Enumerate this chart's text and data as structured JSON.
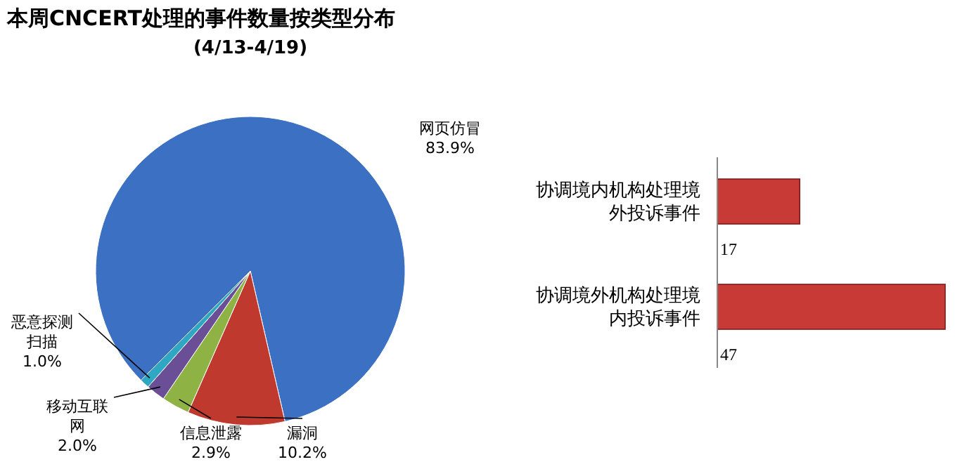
{
  "chart_data": [
    {
      "type": "pie",
      "title": "本周CNCERT处理的事件数量按类型分布",
      "subtitle": "(4/13-4/19)",
      "categories": [
        "网页仿冒",
        "漏洞",
        "信息泄露",
        "移动互联网",
        "恶意探测扫描"
      ],
      "values": [
        83.9,
        10.2,
        2.9,
        2.0,
        1.0
      ],
      "value_labels": [
        "83.9%",
        "10.2%",
        "2.9%",
        "2.0%",
        "1.0%"
      ],
      "colors": [
        "#3b70c2",
        "#c0392f",
        "#8fb244",
        "#6b4f96",
        "#2ea7c4"
      ]
    },
    {
      "type": "bar",
      "orientation": "horizontal",
      "categories": [
        "协调境内机构处理境外投诉事件",
        "协调境外机构处理境内投诉事件"
      ],
      "values": [
        17,
        47
      ],
      "color": "#c83a35",
      "data_labels": true
    }
  ]
}
